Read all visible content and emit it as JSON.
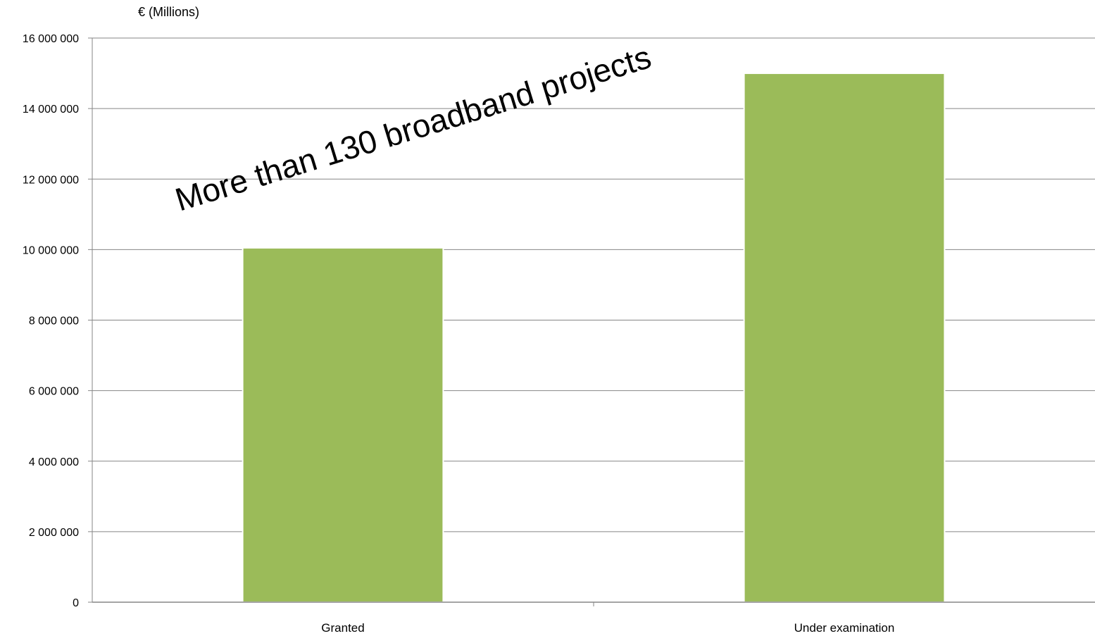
{
  "chart_data": {
    "type": "bar",
    "categories": [
      "Granted",
      "Under examination"
    ],
    "values": [
      10050000,
      15000000
    ],
    "ylabel": "€ (Millions)",
    "xlabel": "",
    "ylim": [
      0,
      16000000
    ],
    "yticks": [
      0,
      2000000,
      4000000,
      6000000,
      8000000,
      10000000,
      12000000,
      14000000,
      16000000
    ],
    "ytick_labels": [
      "0",
      "2 000 000",
      "4 000 000",
      "6 000 000",
      "8 000 000",
      "10 000 000",
      "12 000 000",
      "14 000 000",
      "16 000 000"
    ],
    "grid": true,
    "legend": "none",
    "bar_color": "#9BBB59",
    "annotation": "More than 130 broadband projects"
  }
}
